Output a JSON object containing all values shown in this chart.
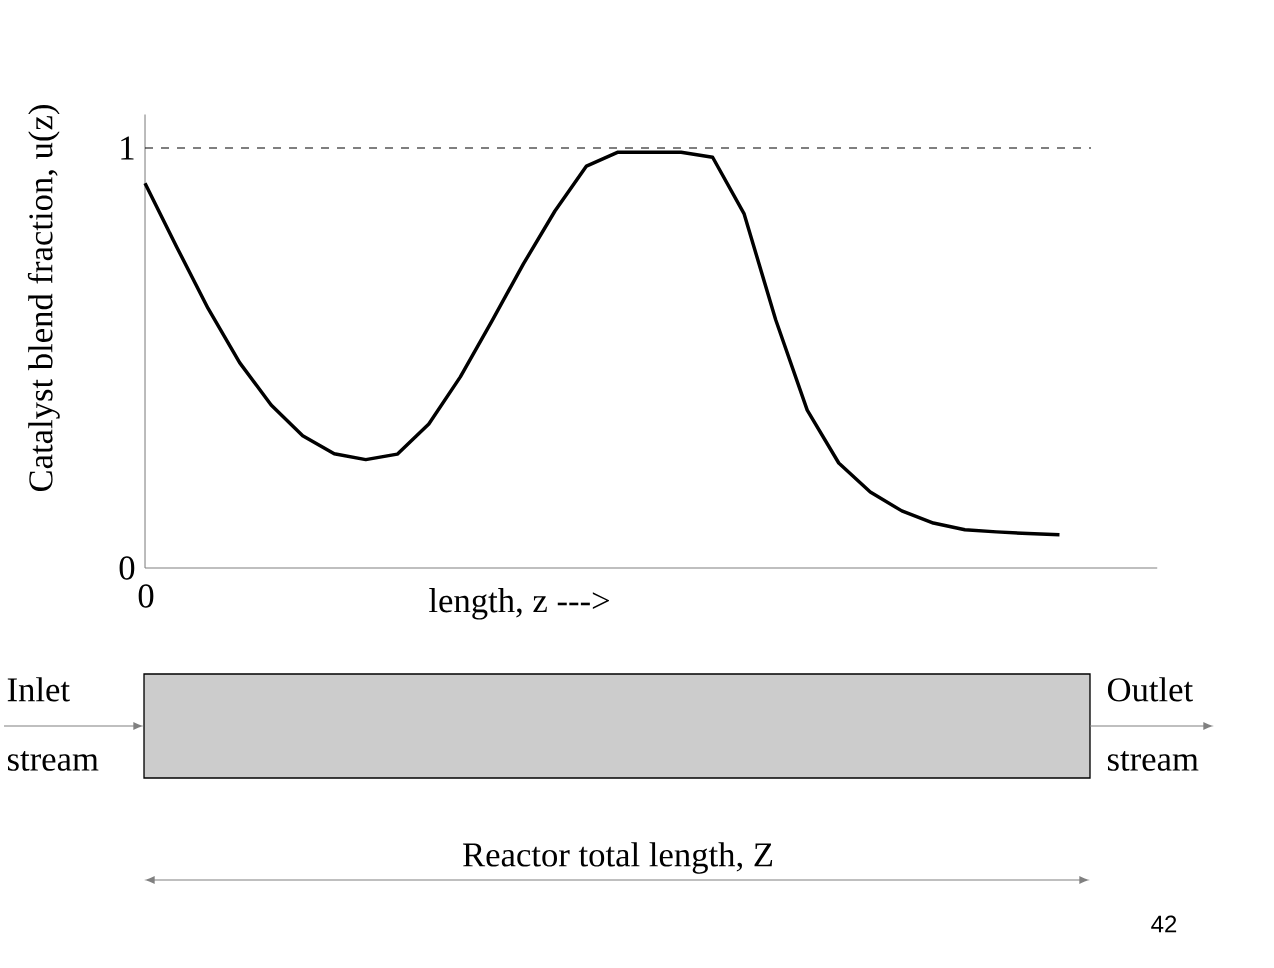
{
  "chart_data": {
    "type": "line",
    "ylabel": "Catalyst blend fraction, u(z)",
    "xlabel": "length, z  --->",
    "categories": [
      null,
      null,
      null,
      null,
      null,
      null,
      null,
      null,
      null,
      null,
      null,
      null,
      null,
      null,
      null,
      null,
      null,
      null,
      null,
      null,
      null,
      null,
      null,
      null,
      null,
      null,
      null,
      null,
      null,
      null
    ],
    "series": [
      {
        "color": "#000000",
        "values": [
          0.916,
          0.765,
          0.618,
          0.489,
          0.388,
          0.315,
          0.272,
          0.258,
          0.271,
          0.343,
          0.455,
          0.588,
          0.724,
          0.85,
          0.957,
          0.99,
          0.99,
          0.99,
          0.978,
          0.843,
          0.591,
          0.376,
          0.25,
          0.181,
          0.136,
          0.107,
          0.091,
          0.086,
          0.082,
          0.079
        ]
      }
    ],
    "ylim": [
      0,
      1.08
    ],
    "yticks": [
      0,
      1
    ],
    "ref_lines": [
      {
        "axis": "y",
        "value": 1,
        "line_style": "dashed"
      }
    ],
    "line_style": "solid",
    "annotations": [
      "Inlet stream",
      "Outlet stream",
      "Reactor total length, Z",
      "42",
      "0"
    ]
  }
}
